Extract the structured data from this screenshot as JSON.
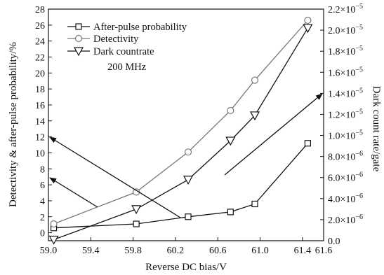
{
  "chart_data": {
    "type": "line",
    "xlabel": "Reverse DC bias/V",
    "ylabel_left": "Detectivity & after-pulse probability/%",
    "ylabel_right": "Dark count rate/gate",
    "x_range": [
      59.0,
      61.6
    ],
    "x_ticks": [
      "59.0",
      "59.4",
      "59.8",
      "60.2",
      "60.6",
      "61.0",
      "61.4",
      "61.6"
    ],
    "x_tick_values": [
      59.0,
      59.4,
      59.8,
      60.2,
      60.6,
      61.0,
      61.4,
      61.6
    ],
    "y_left_range": [
      -1,
      28
    ],
    "y_left_ticks": [
      0,
      2,
      4,
      6,
      8,
      10,
      12,
      14,
      16,
      18,
      20,
      22,
      24,
      26,
      28
    ],
    "y_right_range": [
      0,
      2.2e-05
    ],
    "y_right_ticks": [
      {
        "value": 0,
        "mantissa": "0.0",
        "exp": ""
      },
      {
        "value": 2e-06,
        "mantissa": "2.0×10",
        "exp": "−6"
      },
      {
        "value": 4e-06,
        "mantissa": "4.0×10",
        "exp": "−6"
      },
      {
        "value": 6e-06,
        "mantissa": "6.0×10",
        "exp": "−6"
      },
      {
        "value": 8e-06,
        "mantissa": "8.0×10",
        "exp": "−6"
      },
      {
        "value": 1e-05,
        "mantissa": "1.0×10",
        "exp": "−5"
      },
      {
        "value": 1.2e-05,
        "mantissa": "1.2×10",
        "exp": "−5"
      },
      {
        "value": 1.4e-05,
        "mantissa": "1.4×10",
        "exp": "−5"
      },
      {
        "value": 1.6e-05,
        "mantissa": "1.6×10",
        "exp": "−5"
      },
      {
        "value": 1.8e-05,
        "mantissa": "1.8×10",
        "exp": "−5"
      },
      {
        "value": 2e-05,
        "mantissa": "2.0×10",
        "exp": "−5"
      },
      {
        "value": 2.2e-05,
        "mantissa": "2.2×10",
        "exp": "−5"
      }
    ],
    "series": [
      {
        "name": "After-pulse probability",
        "axis": "left",
        "marker": "square",
        "color": "#111111",
        "x": [
          59.05,
          59.83,
          60.32,
          60.72,
          60.95,
          61.45
        ],
        "y": [
          0.6,
          1.1,
          2.0,
          2.6,
          3.6,
          11.2
        ]
      },
      {
        "name": "Detectivity",
        "axis": "left",
        "marker": "circle",
        "color": "#777777",
        "x": [
          59.05,
          59.83,
          60.32,
          60.72,
          60.95,
          61.45
        ],
        "y": [
          1.1,
          5.1,
          10.1,
          15.3,
          19.1,
          26.6
        ]
      },
      {
        "name": "Dark countrate",
        "axis": "right",
        "marker": "triangle-down",
        "color": "#111111",
        "x": [
          59.05,
          59.83,
          60.32,
          60.72,
          60.95,
          61.45
        ],
        "y": [
          1e-07,
          3e-06,
          5.8e-06,
          9.5e-06,
          1.19e-05,
          2.02e-05
        ]
      }
    ],
    "annotations": [
      {
        "text": "200 MHz"
      }
    ],
    "legend_position": "top-left",
    "grid": false
  }
}
